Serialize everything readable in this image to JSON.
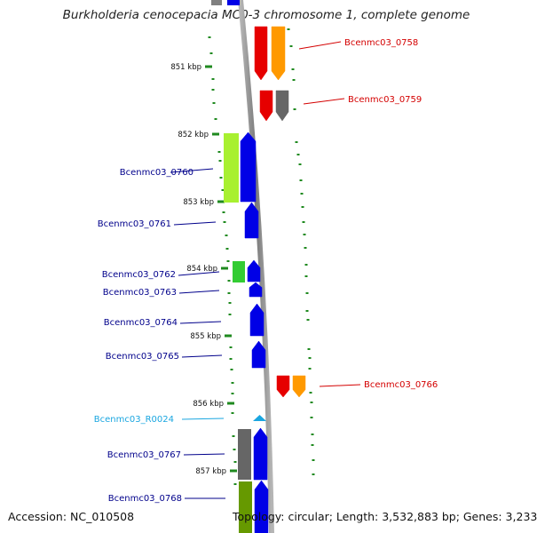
{
  "title": "Burkholderia cenocepacia MC0-3 chromosome 1, complete genome",
  "footer": {
    "accession_label": "Accession:",
    "accession": "NC_010508",
    "topology": "Topology: circular; Length: 3,532,883 bp; Genes: 3,233"
  },
  "colors": {
    "forward_label": "#00008b",
    "reverse_label": "#d40000",
    "rna_label": "#1aa6e0",
    "tick": "#1f8a1f",
    "backbone": "#8c8c8c"
  },
  "ticks": [
    {
      "label": "851 kbp"
    },
    {
      "label": "852 kbp"
    },
    {
      "label": "853 kbp"
    },
    {
      "label": "854 kbp"
    },
    {
      "label": "855 kbp"
    },
    {
      "label": "856 kbp"
    },
    {
      "label": "857 kbp"
    }
  ],
  "genes": [
    {
      "name": "Bcenmc03_0758",
      "strand": "reverse",
      "type": "CDS",
      "color": "#e60000",
      "cog_color": "#ff9900"
    },
    {
      "name": "Bcenmc03_0759",
      "strand": "reverse",
      "type": "CDS",
      "color": "#e60000",
      "cog_color": "#666666"
    },
    {
      "name": "Bcenmc03_0760",
      "strand": "forward",
      "type": "CDS",
      "color": "#0000e6",
      "cog_color": "#a8f030"
    },
    {
      "name": "Bcenmc03_0761",
      "strand": "forward",
      "type": "CDS",
      "color": "#0000e6",
      "cog_color": ""
    },
    {
      "name": "Bcenmc03_0762",
      "strand": "forward",
      "type": "CDS",
      "color": "#0000e6",
      "cog_color": "#33cc33"
    },
    {
      "name": "Bcenmc03_0763",
      "strand": "forward",
      "type": "CDS",
      "color": "#0000e6",
      "cog_color": ""
    },
    {
      "name": "Bcenmc03_0764",
      "strand": "forward",
      "type": "CDS",
      "color": "#0000e6",
      "cog_color": ""
    },
    {
      "name": "Bcenmc03_0765",
      "strand": "forward",
      "type": "CDS",
      "color": "#0000e6",
      "cog_color": ""
    },
    {
      "name": "Bcenmc03_0766",
      "strand": "reverse",
      "type": "CDS",
      "color": "#e60000",
      "cog_color": "#ff9900"
    },
    {
      "name": "Bcenmc03_R0024",
      "strand": "forward",
      "type": "tRNA",
      "color": "#1aa6e0",
      "cog_color": ""
    },
    {
      "name": "Bcenmc03_0767",
      "strand": "forward",
      "type": "CDS",
      "color": "#0000e6",
      "cog_color": "#666666"
    },
    {
      "name": "Bcenmc03_0768",
      "strand": "forward",
      "type": "CDS",
      "color": "#0000e6",
      "cog_color": "#669900"
    }
  ]
}
